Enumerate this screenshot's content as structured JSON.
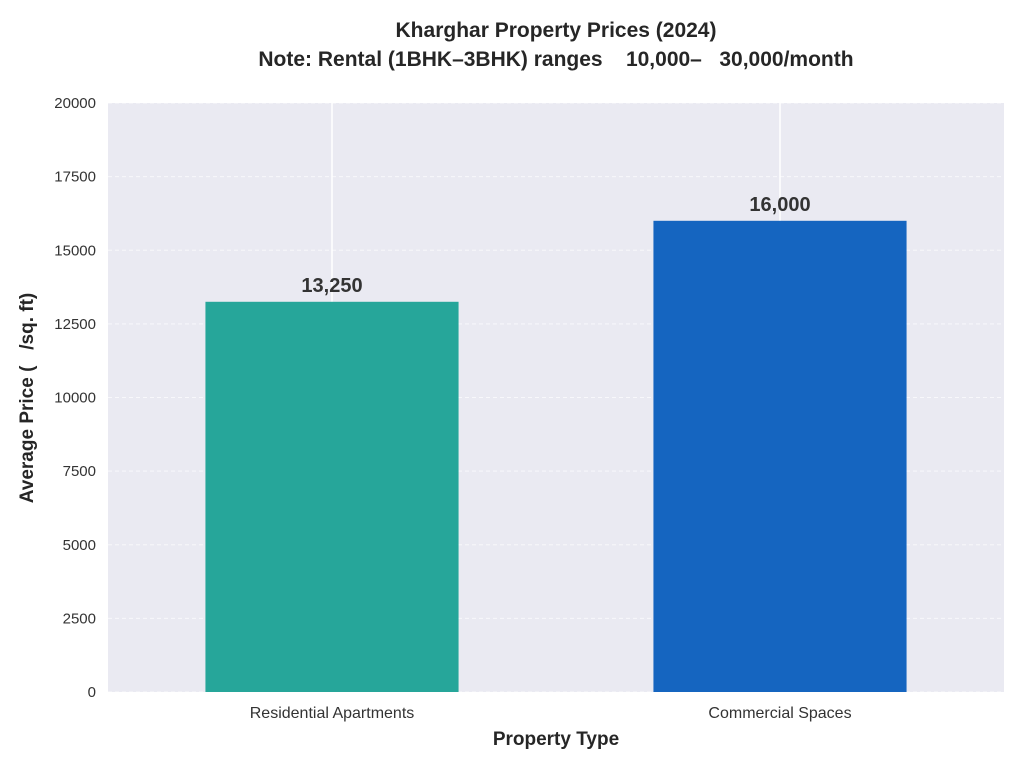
{
  "chart_data": {
    "type": "bar",
    "title": "Kharghar Property Prices (2024)",
    "subtitle": "Note: Rental (1BHK–3BHK) ranges    10,000–   30,000/month",
    "xlabel": "Property Type",
    "ylabel": "Average Price (   /sq. ft)",
    "categories": [
      "Residential Apartments",
      "Commercial Spaces"
    ],
    "values": [
      13250,
      16000
    ],
    "value_labels": [
      "13,250",
      "16,000"
    ],
    "colors": [
      "#26a69a",
      "#1565c0"
    ],
    "ylim": [
      0,
      20000
    ],
    "yticks": [
      0,
      2500,
      5000,
      7500,
      10000,
      12500,
      15000,
      17500,
      20000
    ],
    "grid": true,
    "background": "#eaeaf2"
  }
}
